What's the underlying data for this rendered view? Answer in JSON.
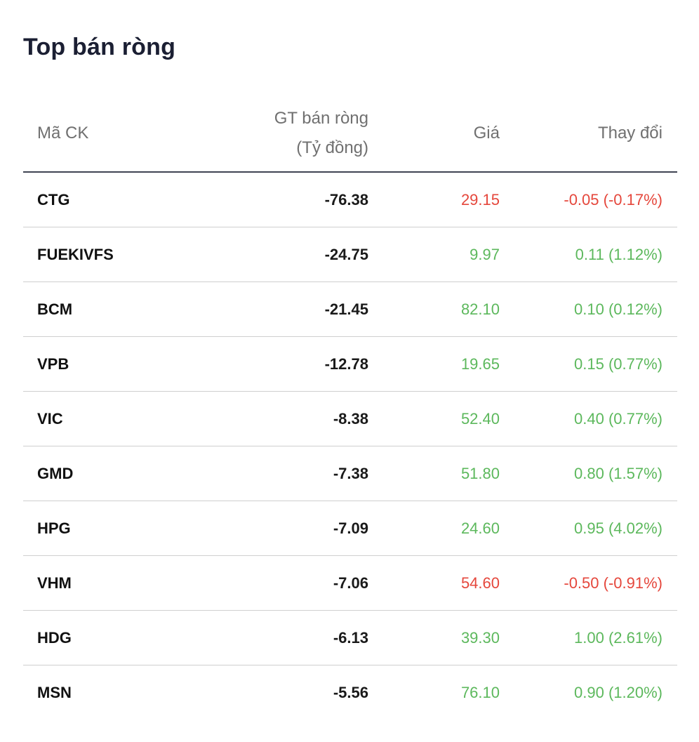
{
  "widget": {
    "title": "Top bán ròng"
  },
  "table": {
    "headers": {
      "symbol": "Mã CK",
      "value_line1": "GT bán ròng",
      "value_line2": "(Tỷ đồng)",
      "price": "Giá",
      "change": "Thay đổi"
    },
    "rows": [
      {
        "symbol": "CTG",
        "value": "-76.38",
        "price": "29.15",
        "change": "-0.05 (-0.17%)",
        "trend": "down"
      },
      {
        "symbol": "FUEKIVFS",
        "value": "-24.75",
        "price": "9.97",
        "change": "0.11 (1.12%)",
        "trend": "up"
      },
      {
        "symbol": "BCM",
        "value": "-21.45",
        "price": "82.10",
        "change": "0.10 (0.12%)",
        "trend": "up"
      },
      {
        "symbol": "VPB",
        "value": "-12.78",
        "price": "19.65",
        "change": "0.15 (0.77%)",
        "trend": "up"
      },
      {
        "symbol": "VIC",
        "value": "-8.38",
        "price": "52.40",
        "change": "0.40 (0.77%)",
        "trend": "up"
      },
      {
        "symbol": "GMD",
        "value": "-7.38",
        "price": "51.80",
        "change": "0.80 (1.57%)",
        "trend": "up"
      },
      {
        "symbol": "HPG",
        "value": "-7.09",
        "price": "24.60",
        "change": "0.95 (4.02%)",
        "trend": "up"
      },
      {
        "symbol": "VHM",
        "value": "-7.06",
        "price": "54.60",
        "change": "-0.50 (-0.91%)",
        "trend": "down"
      },
      {
        "symbol": "HDG",
        "value": "-6.13",
        "price": "39.30",
        "change": "1.00 (2.61%)",
        "trend": "up"
      },
      {
        "symbol": "MSN",
        "value": "-5.56",
        "price": "76.10",
        "change": "0.90 (1.20%)",
        "trend": "up"
      }
    ]
  },
  "colors": {
    "up": "#5cb85c",
    "down": "#e5473c",
    "title": "#1b1f33",
    "header_text": "#707070",
    "header_rule": "#3f4453",
    "row_rule": "#cfcfcf"
  }
}
